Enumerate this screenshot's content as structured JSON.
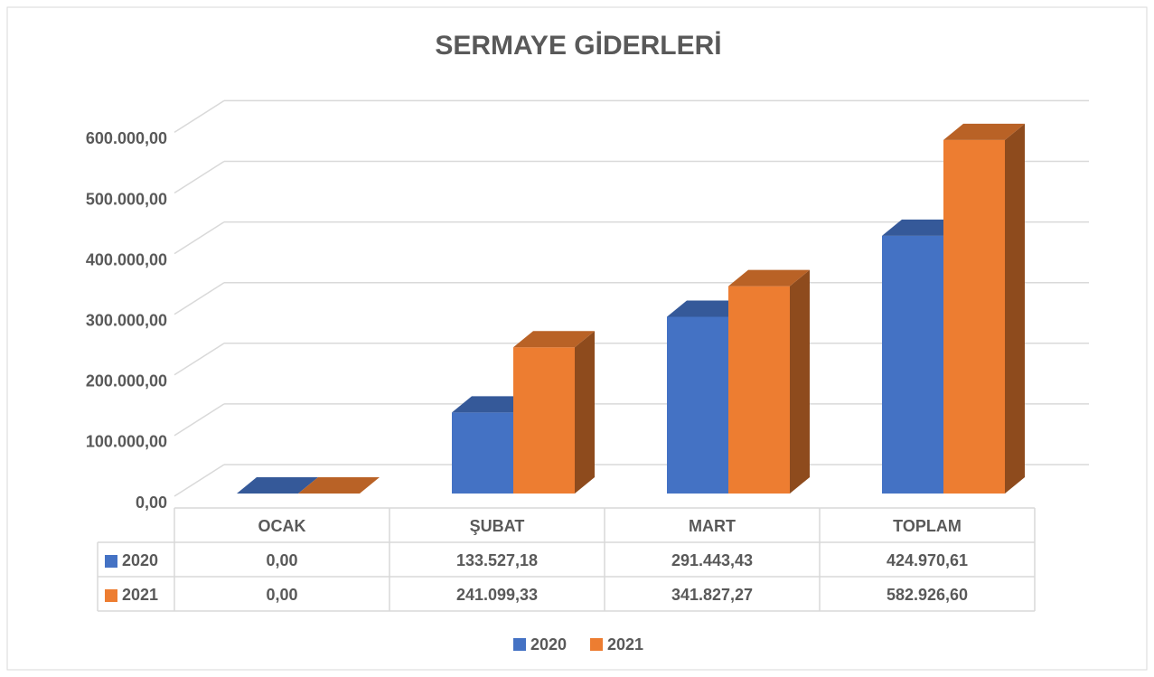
{
  "chart_data": {
    "type": "bar3d",
    "title": "SERMAYE GİDERLERİ",
    "categories": [
      "OCAK",
      "ŞUBAT",
      "MART",
      "TOPLAM"
    ],
    "series": [
      {
        "name": "2020",
        "color": "#4472c4",
        "values": [
          0,
          133527.18,
          291443.43,
          424970.61
        ],
        "value_labels": [
          "0,00",
          "133.527,18",
          "291.443,43",
          "424.970,61"
        ]
      },
      {
        "name": "2021",
        "color": "#ed7d31",
        "values": [
          0,
          241099.33,
          341827.27,
          582926.6
        ],
        "value_labels": [
          "0,00",
          "241.099,33",
          "341.827,27",
          "582.926,60"
        ]
      }
    ],
    "ylim": [
      0,
      600000
    ],
    "yticks": [
      {
        "value": 0,
        "label": "0,00"
      },
      {
        "value": 100000,
        "label": "100.000,00"
      },
      {
        "value": 200000,
        "label": "200.000,00"
      },
      {
        "value": 300000,
        "label": "300.000,00"
      },
      {
        "value": 400000,
        "label": "400.000,00"
      },
      {
        "value": 500000,
        "label": "500.000,00"
      },
      {
        "value": 600000,
        "label": "600.000,00"
      }
    ],
    "grid": true,
    "legend": "bottom",
    "data_table": true
  }
}
